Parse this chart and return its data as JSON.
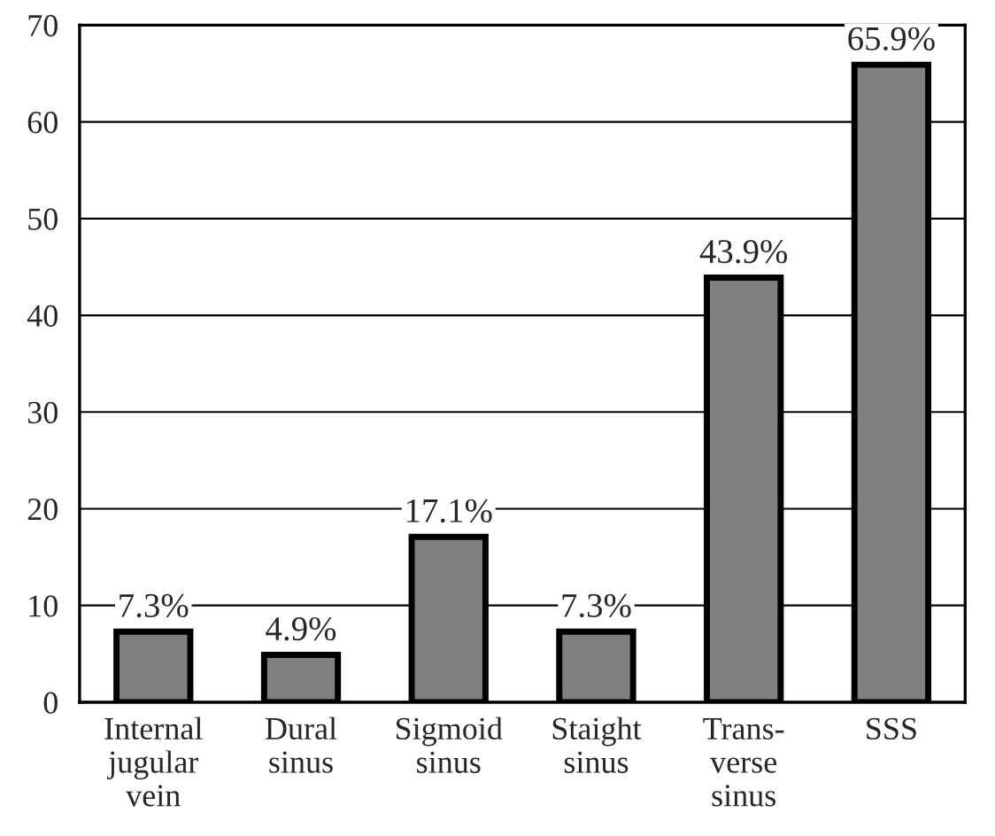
{
  "chart_data": {
    "type": "bar",
    "categories": [
      "Internal\njugular\nvein",
      "Dural\nsinus",
      "Sigmoid\nsinus",
      "Staight\nsinus",
      "Trans-\nverse\nsinus",
      "SSS"
    ],
    "values": [
      7.3,
      4.9,
      17.1,
      7.3,
      43.9,
      65.9
    ],
    "value_labels": [
      "7.3%",
      "4.9%",
      "17.1%",
      "7.3%",
      "43.9%",
      "65.9%"
    ],
    "color": "#808080",
    "ylim": [
      0,
      70
    ],
    "yticks": [
      0,
      10,
      20,
      30,
      40,
      50,
      60,
      70
    ],
    "grid": "y",
    "legend": false
  }
}
